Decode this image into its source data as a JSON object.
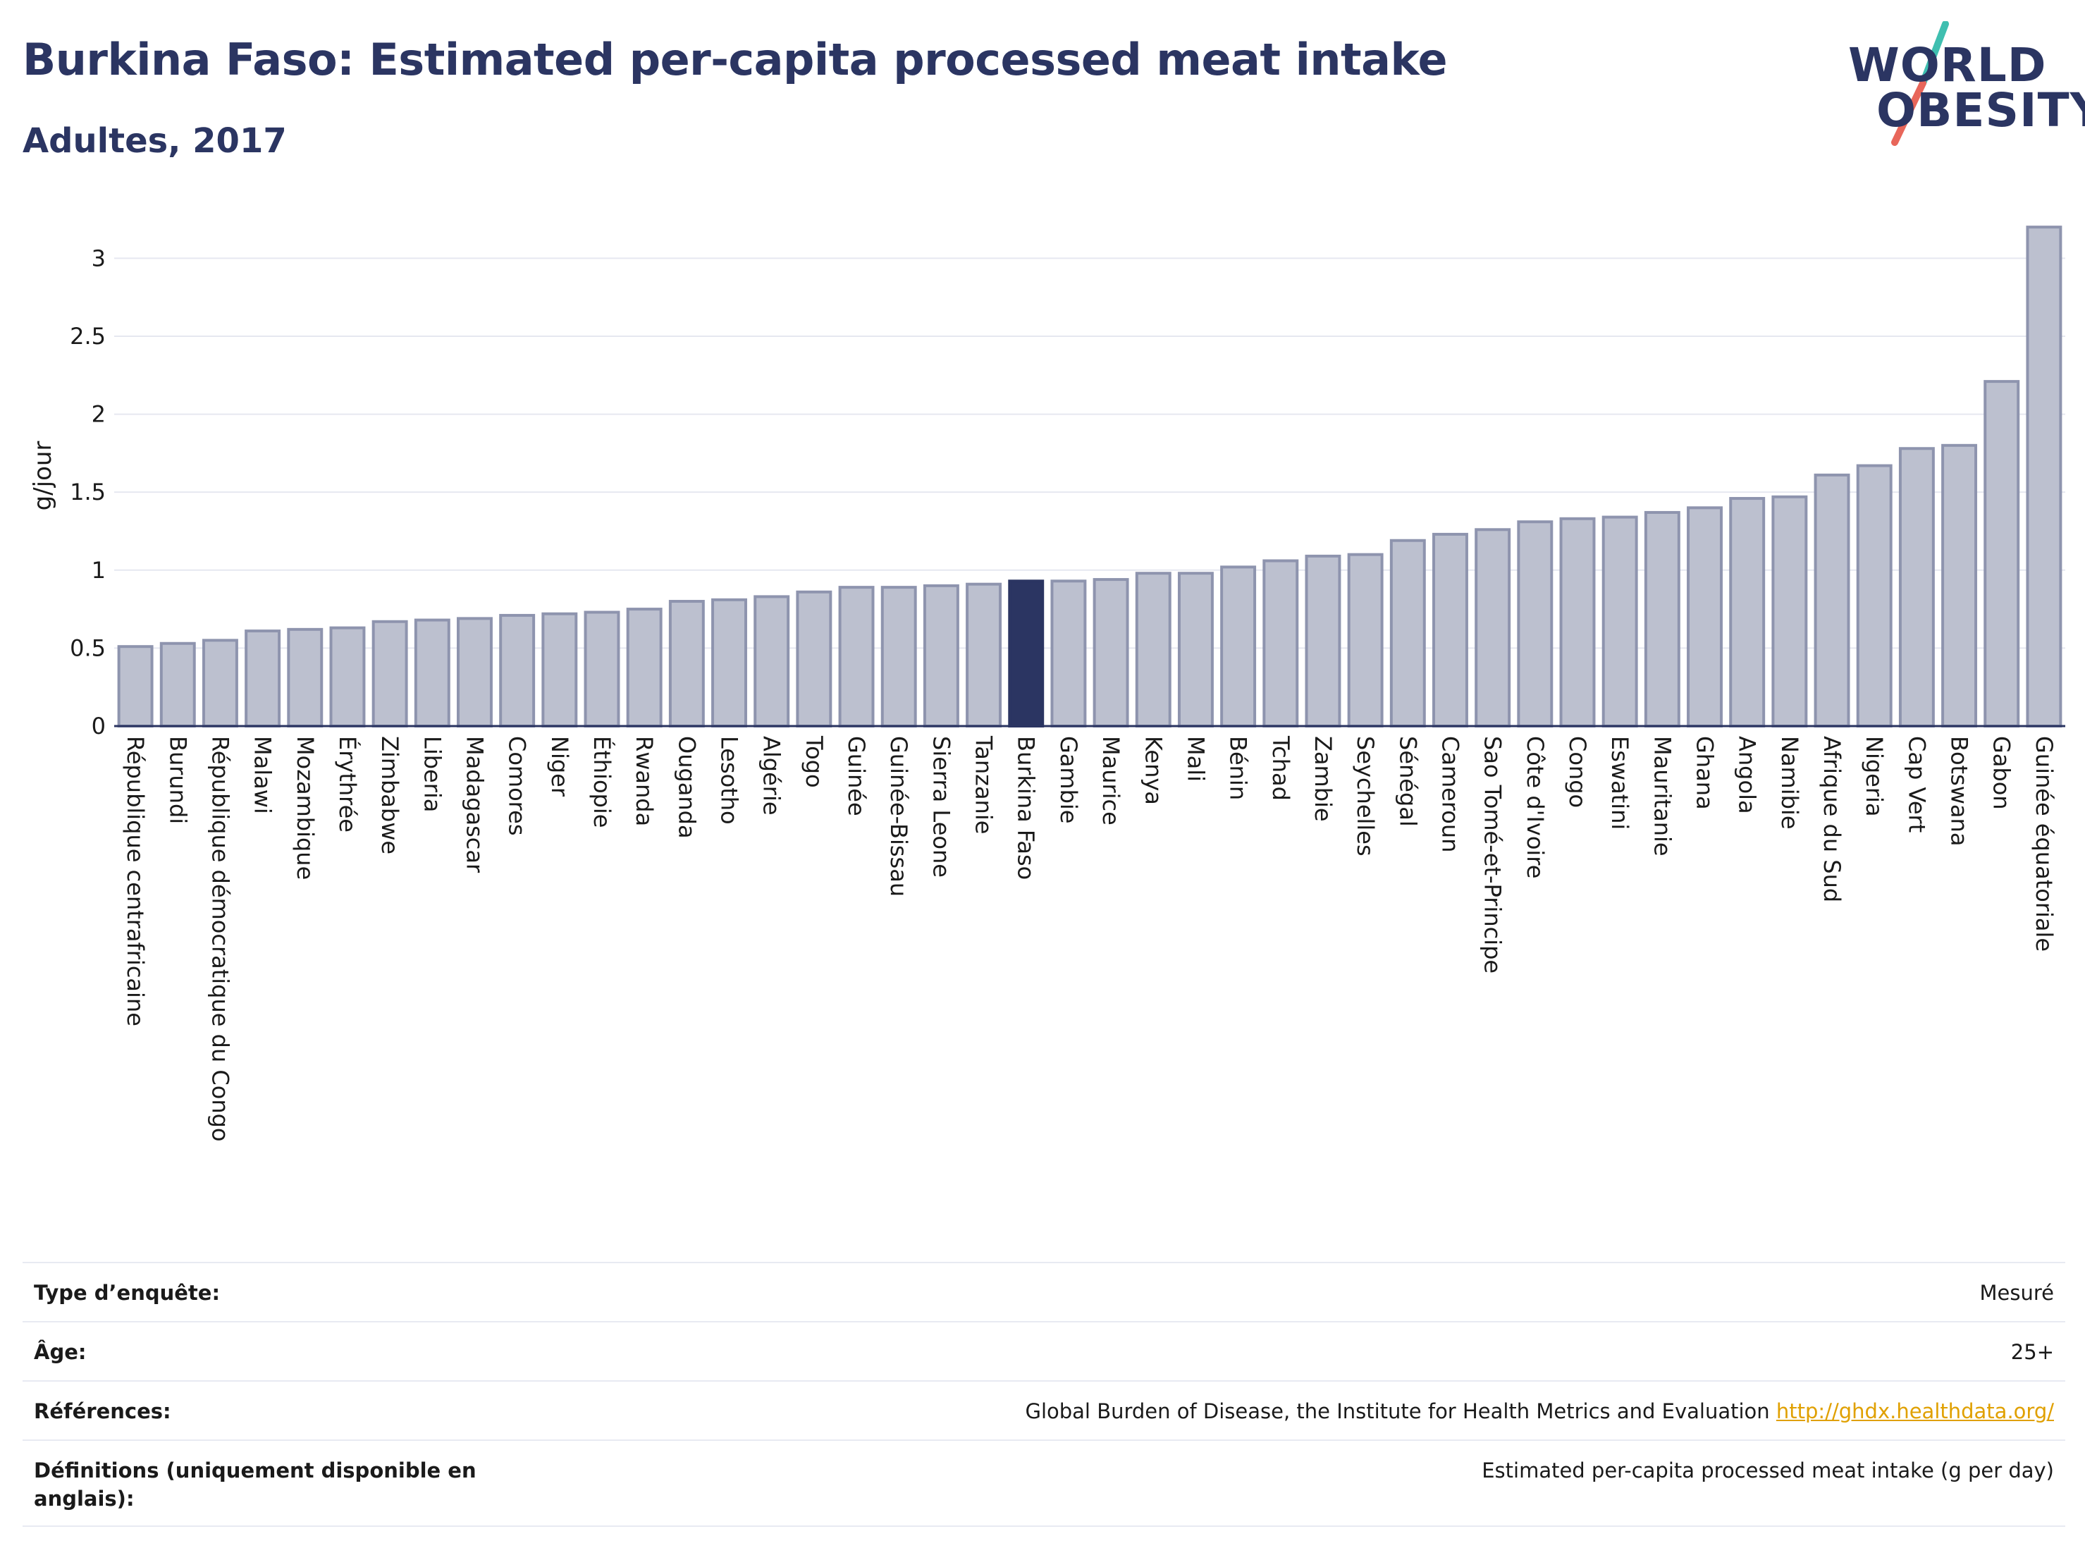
{
  "header": {
    "title": "Burkina Faso: Estimated per-capita processed meat intake",
    "subtitle": "Adultes, 2017"
  },
  "logo": {
    "line1": "WORLD",
    "line2": "OBESITY",
    "colors": {
      "text": "#2b3562",
      "slash_top": "#3fbfb0",
      "slash_bottom": "#e8665a"
    }
  },
  "colors": {
    "bar_fill": "#bcc0cf",
    "bar_stroke": "#8e94ae",
    "highlight": "#2b3562",
    "grid": "#e6e8f0",
    "axis": "#2b3562"
  },
  "chart_data": {
    "type": "bar",
    "ylabel": "g/jour",
    "xlabel": "",
    "ylim": [
      0,
      3.3
    ],
    "yticks": [
      0,
      0.5,
      1,
      1.5,
      2,
      2.5,
      3
    ],
    "ytick_labels": [
      "0",
      "0.5",
      "1",
      "1.5",
      "2",
      "2.5",
      "3"
    ],
    "grid": true,
    "highlight": "Burkina Faso",
    "categories": [
      "République centrafricaine",
      "Burundi",
      "République démocratique du Congo",
      "Malawi",
      "Mozambique",
      "Érythrée",
      "Zimbabwe",
      "Liberia",
      "Madagascar",
      "Comores",
      "Niger",
      "Éthiopie",
      "Rwanda",
      "Ouganda",
      "Lesotho",
      "Algérie",
      "Togo",
      "Guinée",
      "Guinée-Bissau",
      "Sierra Leone",
      "Tanzanie",
      "Burkina Faso",
      "Gambie",
      "Maurice",
      "Kenya",
      "Mali",
      "Bénin",
      "Tchad",
      "Zambie",
      "Seychelles",
      "Sénégal",
      "Cameroun",
      "Sao Tomé-et-Principe",
      "Côte d'Ivoire",
      "Congo",
      "Eswatini",
      "Mauritanie",
      "Ghana",
      "Angola",
      "Namibie",
      "Afrique du Sud",
      "Nigeria",
      "Cap Vert",
      "Botswana",
      "Gabon",
      "Guinée équatoriale"
    ],
    "values": [
      0.51,
      0.53,
      0.55,
      0.61,
      0.62,
      0.63,
      0.67,
      0.68,
      0.69,
      0.71,
      0.72,
      0.73,
      0.75,
      0.8,
      0.81,
      0.83,
      0.86,
      0.89,
      0.89,
      0.9,
      0.91,
      0.93,
      0.93,
      0.94,
      0.98,
      0.98,
      1.02,
      1.06,
      1.09,
      1.1,
      1.19,
      1.23,
      1.26,
      1.31,
      1.33,
      1.34,
      1.37,
      1.4,
      1.46,
      1.47,
      1.61,
      1.67,
      1.78,
      1.8,
      2.21,
      3.2
    ]
  },
  "info": [
    {
      "label": "Type d’enquête:",
      "value": "Mesuré"
    },
    {
      "label": "Âge:",
      "value": "25+"
    },
    {
      "label": "Références:",
      "value": "Global Burden of Disease, the Institute for Health Metrics and Evaluation",
      "link": "http://ghdx.healthdata.org/"
    },
    {
      "label": "Définitions (uniquement disponible en anglais):",
      "value": "Estimated per-capita processed meat intake (g per day)"
    }
  ]
}
